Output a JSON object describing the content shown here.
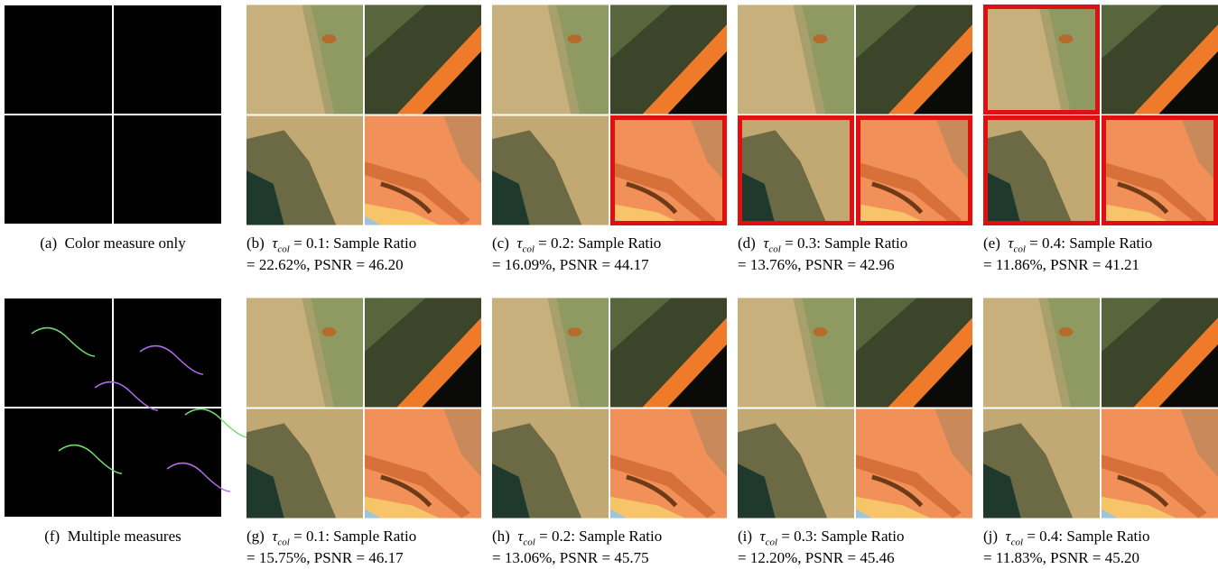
{
  "figure": {
    "panels": [
      {
        "label": "(a)",
        "text": "Color measure only"
      },
      {
        "label": "(b)",
        "symbol": "τ",
        "subscript": "col",
        "text": "= 0.1: Sample Ratio",
        "text2": "= 22.62%, PSNR = 46.20"
      },
      {
        "label": "(c)",
        "symbol": "τ",
        "subscript": "col",
        "text": "= 0.2: Sample Ratio",
        "text2": "= 16.09%, PSNR = 44.17"
      },
      {
        "label": "(d)",
        "symbol": "τ",
        "subscript": "col",
        "text": "= 0.3: Sample Ratio",
        "text2": "= 13.76%, PSNR = 42.96"
      },
      {
        "label": "(e)",
        "symbol": "τ",
        "subscript": "col",
        "text": "= 0.4: Sample Ratio",
        "text2": "= 11.86%, PSNR = 41.21"
      },
      {
        "label": "(f)",
        "text": "Multiple measures"
      },
      {
        "label": "(g)",
        "symbol": "τ",
        "subscript": "col",
        "text": "= 0.1: Sample Ratio",
        "text2": "= 15.75%, PSNR = 46.17"
      },
      {
        "label": "(h)",
        "symbol": "τ",
        "subscript": "col",
        "text": "= 0.2: Sample Ratio",
        "text2": "= 13.06%, PSNR = 45.75"
      },
      {
        "label": "(i)",
        "symbol": "τ",
        "subscript": "col",
        "text": "= 0.3: Sample Ratio",
        "text2": "= 12.20%, PSNR = 45.46"
      },
      {
        "label": "(j)",
        "symbol": "τ",
        "subscript": "col",
        "text": "= 0.4: Sample Ratio",
        "text2": "= 11.83%, PSNR = 45.20"
      }
    ]
  }
}
